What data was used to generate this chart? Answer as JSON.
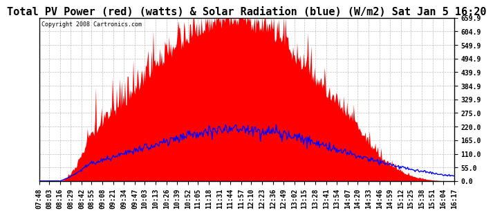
{
  "title": "Total PV Power (red) (watts) & Solar Radiation (blue) (W/m2) Sat Jan 5 16:20",
  "copyright_text": "Copyright 2008 Cartronics.com",
  "yticks": [
    0.0,
    55.0,
    110.0,
    165.0,
    220.0,
    275.0,
    329.9,
    384.9,
    439.9,
    494.9,
    549.9,
    604.9,
    659.9
  ],
  "ymin": 0.0,
  "ymax": 659.9,
  "bg_color": "#ffffff",
  "grid_color": "#b0b0b0",
  "pv_color": "#ff0000",
  "solar_color": "#0000ff",
  "title_fontsize": 11,
  "tick_fontsize": 7,
  "time_labels": [
    "07:48",
    "08:03",
    "08:16",
    "08:29",
    "08:42",
    "08:55",
    "09:08",
    "09:21",
    "09:34",
    "09:47",
    "10:03",
    "10:13",
    "10:26",
    "10:39",
    "10:52",
    "11:05",
    "11:18",
    "11:31",
    "11:44",
    "11:57",
    "12:10",
    "12:23",
    "12:36",
    "12:49",
    "13:02",
    "13:15",
    "13:28",
    "13:41",
    "13:54",
    "14:07",
    "14:20",
    "14:33",
    "14:46",
    "14:59",
    "15:12",
    "15:25",
    "15:38",
    "15:51",
    "16:04",
    "16:17"
  ],
  "n_points": 500,
  "pv_peak": 230,
  "pv_sigma": 105,
  "pv_max_scale": 620,
  "pv_noise_scale": 60,
  "pv_spike_scale": 120,
  "solar_peak": 240,
  "solar_sigma": 120,
  "solar_max_scale": 210,
  "solar_noise_scale": 12
}
